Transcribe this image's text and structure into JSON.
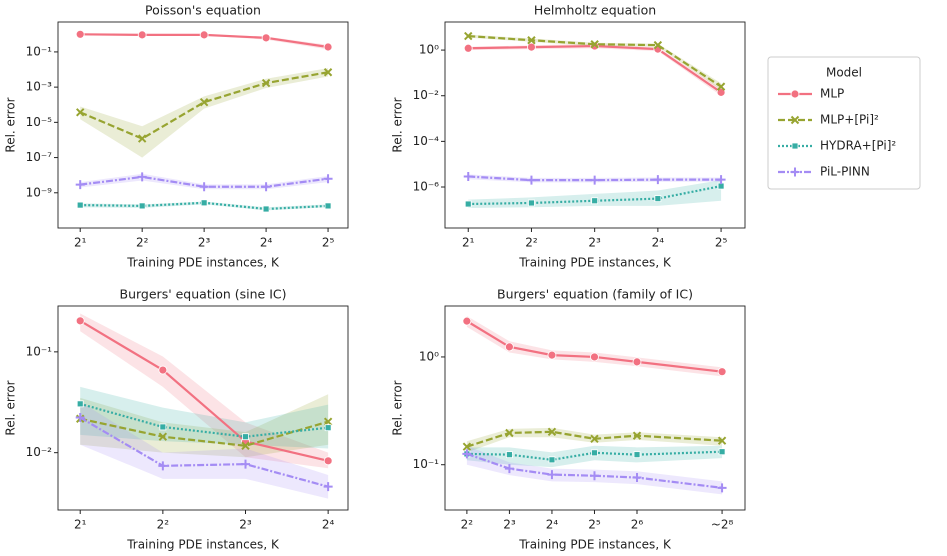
{
  "legend": {
    "title": "Model",
    "items": [
      {
        "name": "MLP",
        "color": "#f27181",
        "dash": "solid",
        "marker": "circle"
      },
      {
        "name": "MLP+[Pi]²",
        "color": "#97a431",
        "dash": "dashed",
        "marker": "x"
      },
      {
        "name": "HYDRA+[Pi]²",
        "color": "#36ada4",
        "dash": "dotted",
        "marker": "square"
      },
      {
        "name": "PiL-PINN",
        "color": "#a48cf4",
        "dash": "dashdot",
        "marker": "plus"
      }
    ]
  },
  "chart_data": [
    {
      "type": "line",
      "title": "Poisson's equation",
      "x_label": "Training PDE instances, K",
      "y_label": "Rel. error",
      "xscale": "log2",
      "yscale": "log",
      "x": [
        2,
        4,
        8,
        16,
        32
      ],
      "xlim": [
        1.56,
        40
      ],
      "xticks": [
        {
          "value": 2,
          "label": "2¹"
        },
        {
          "value": 4,
          "label": "2²"
        },
        {
          "value": 8,
          "label": "2³"
        },
        {
          "value": 16,
          "label": "2⁴"
        },
        {
          "value": 32,
          "label": "2⁵"
        }
      ],
      "ylim": [
        1e-11,
        5
      ],
      "yticks": [
        {
          "value": 0.1,
          "label": "10⁻¹"
        },
        {
          "value": 0.001,
          "label": "10⁻³"
        },
        {
          "value": 1e-05,
          "label": "10⁻⁵"
        },
        {
          "value": 1e-07,
          "label": "10⁻⁷"
        },
        {
          "value": 1e-09,
          "label": "10⁻⁹"
        }
      ],
      "series": [
        {
          "values": [
            1.0,
            0.93,
            0.93,
            0.63,
            0.19
          ],
          "lower": [
            0.9,
            0.85,
            0.85,
            0.5,
            0.14
          ],
          "upper": [
            1.1,
            1.0,
            1.0,
            0.75,
            0.25
          ]
        },
        {
          "values": [
            3.7e-05,
            1.2e-06,
            0.00014,
            0.0017,
            0.007
          ],
          "lower": [
            1.5e-05,
            1e-07,
            6e-05,
            0.0009,
            0.004
          ],
          "upper": [
            8e-05,
            6e-06,
            0.0003,
            0.003,
            0.012
          ]
        },
        {
          "values": [
            2e-10,
            1.8e-10,
            2.7e-10,
            1.2e-10,
            1.8e-10
          ],
          "lower": [
            1.5e-10,
            1.4e-10,
            2.2e-10,
            1e-10,
            1.5e-10
          ],
          "upper": [
            2.5e-10,
            2.2e-10,
            3.2e-10,
            1.5e-10,
            2.2e-10
          ]
        },
        {
          "values": [
            2.9e-09,
            8e-09,
            2.2e-09,
            2.2e-09,
            6.3e-09
          ],
          "lower": [
            2e-09,
            5e-09,
            1.6e-09,
            1.6e-09,
            4e-09
          ],
          "upper": [
            4e-09,
            1.2e-08,
            3e-09,
            3e-09,
            9e-09
          ]
        }
      ]
    },
    {
      "type": "line",
      "title": "Helmholtz equation",
      "x_label": "Training PDE instances, K",
      "y_label": "Rel. error",
      "xscale": "log2",
      "yscale": "log",
      "x": [
        2,
        4,
        8,
        16,
        32
      ],
      "xlim": [
        1.55,
        41.6
      ],
      "xticks": [
        {
          "value": 2,
          "label": "2¹"
        },
        {
          "value": 4,
          "label": "2²"
        },
        {
          "value": 8,
          "label": "2³"
        },
        {
          "value": 16,
          "label": "2⁴"
        },
        {
          "value": 32,
          "label": "2⁵"
        }
      ],
      "ylim": [
        1.6e-08,
        17
      ],
      "yticks": [
        {
          "value": 1,
          "label": "10⁰"
        },
        {
          "value": 0.01,
          "label": "10⁻²"
        },
        {
          "value": 0.0001,
          "label": "10⁻⁴"
        },
        {
          "value": 1e-06,
          "label": "10⁻⁶"
        }
      ],
      "series": [
        {
          "values": [
            1.2,
            1.35,
            1.5,
            1.1,
            0.014
          ],
          "lower": [
            1.0,
            1.1,
            1.2,
            0.9,
            0.01
          ],
          "upper": [
            1.4,
            1.6,
            1.9,
            1.3,
            0.02
          ]
        },
        {
          "values": [
            4.1,
            2.7,
            1.8,
            1.65,
            0.025
          ],
          "lower": [
            3.5,
            2.3,
            1.5,
            1.4,
            0.018
          ],
          "upper": [
            4.8,
            3.2,
            2.1,
            1.9,
            0.035
          ]
        },
        {
          "values": [
            1.8e-07,
            2e-07,
            2.5e-07,
            3.1e-07,
            1.1e-06
          ],
          "lower": [
            1.2e-07,
            1.3e-07,
            1.5e-07,
            1.5e-07,
            2.5e-07
          ],
          "upper": [
            2.8e-07,
            3.5e-07,
            5e-07,
            7e-07,
            2e-06
          ]
        },
        {
          "values": [
            2.9e-06,
            2e-06,
            2e-06,
            2.1e-06,
            2.1e-06
          ],
          "lower": [
            2.2e-06,
            1.6e-06,
            1.6e-06,
            1.7e-06,
            1.7e-06
          ],
          "upper": [
            3.6e-06,
            2.5e-06,
            2.5e-06,
            2.6e-06,
            2.6e-06
          ]
        }
      ]
    },
    {
      "type": "line",
      "title": "Burgers' equation (sine IC)",
      "x_label": "Training PDE instances, K",
      "y_label": "Rel. error",
      "xscale": "log2",
      "yscale": "log",
      "x": [
        2,
        4,
        8,
        16
      ],
      "xlim": [
        1.66,
        18.9
      ],
      "xticks": [
        {
          "value": 2,
          "label": "2¹"
        },
        {
          "value": 4,
          "label": "2²"
        },
        {
          "value": 8,
          "label": "2³"
        },
        {
          "value": 16,
          "label": "2⁴"
        }
      ],
      "ylim": [
        0.0027,
        0.285
      ],
      "yticks": [
        {
          "value": 0.1,
          "label": "10⁻¹"
        },
        {
          "value": 0.01,
          "label": "10⁻²"
        }
      ],
      "series": [
        {
          "values": [
            0.203,
            0.066,
            0.0129,
            0.0083
          ],
          "lower": [
            0.16,
            0.045,
            0.009,
            0.007
          ],
          "upper": [
            0.24,
            0.09,
            0.02,
            0.01
          ]
        },
        {
          "values": [
            0.0217,
            0.0144,
            0.0117,
            0.0203
          ],
          "lower": [
            0.012,
            0.01,
            0.009,
            0.012
          ],
          "upper": [
            0.035,
            0.02,
            0.016,
            0.038
          ]
        },
        {
          "values": [
            0.0305,
            0.018,
            0.0144,
            0.0177
          ],
          "lower": [
            0.015,
            0.013,
            0.012,
            0.011
          ],
          "upper": [
            0.045,
            0.028,
            0.02,
            0.03
          ]
        },
        {
          "values": [
            0.0223,
            0.0074,
            0.0077,
            0.0046
          ],
          "lower": [
            0.012,
            0.0055,
            0.0055,
            0.0035
          ],
          "upper": [
            0.032,
            0.01,
            0.011,
            0.006
          ]
        }
      ]
    },
    {
      "type": "line",
      "title": "Burgers' equation (family of IC)",
      "x_label": "Training PDE instances, K",
      "y_label": "Rel. error",
      "xscale": "log2",
      "yscale": "log",
      "x": [
        4,
        8,
        16,
        32,
        64,
        256
      ],
      "xlim": [
        2.8,
        372
      ],
      "xticks": [
        {
          "value": 4,
          "label": "2²"
        },
        {
          "value": 8,
          "label": "2³"
        },
        {
          "value": 16,
          "label": "2⁴"
        },
        {
          "value": 32,
          "label": "2⁵"
        },
        {
          "value": 64,
          "label": "2⁶"
        },
        {
          "value": 256,
          "label": "~2⁸"
        }
      ],
      "ylim": [
        0.038,
        2.97
      ],
      "yticks": [
        {
          "value": 1,
          "label": "10⁰"
        },
        {
          "value": 0.1,
          "label": "10⁻¹"
        }
      ],
      "series": [
        {
          "values": [
            2.15,
            1.24,
            1.04,
            1.0,
            0.9,
            0.73
          ],
          "lower": [
            1.9,
            1.1,
            0.95,
            0.9,
            0.82,
            0.66
          ],
          "upper": [
            2.4,
            1.4,
            1.15,
            1.1,
            0.99,
            0.8
          ]
        },
        {
          "values": [
            0.147,
            0.197,
            0.202,
            0.174,
            0.186,
            0.167
          ],
          "lower": [
            0.13,
            0.18,
            0.18,
            0.16,
            0.17,
            0.15
          ],
          "upper": [
            0.165,
            0.215,
            0.22,
            0.19,
            0.2,
            0.18
          ]
        },
        {
          "values": [
            0.126,
            0.124,
            0.111,
            0.129,
            0.124,
            0.132
          ],
          "lower": [
            0.11,
            0.1,
            0.095,
            0.11,
            0.105,
            0.115
          ],
          "upper": [
            0.145,
            0.145,
            0.13,
            0.15,
            0.145,
            0.15
          ]
        },
        {
          "values": [
            0.126,
            0.092,
            0.081,
            0.079,
            0.076,
            0.061
          ],
          "lower": [
            0.1,
            0.08,
            0.07,
            0.069,
            0.066,
            0.053
          ],
          "upper": [
            0.15,
            0.105,
            0.092,
            0.09,
            0.087,
            0.07
          ]
        }
      ]
    }
  ]
}
